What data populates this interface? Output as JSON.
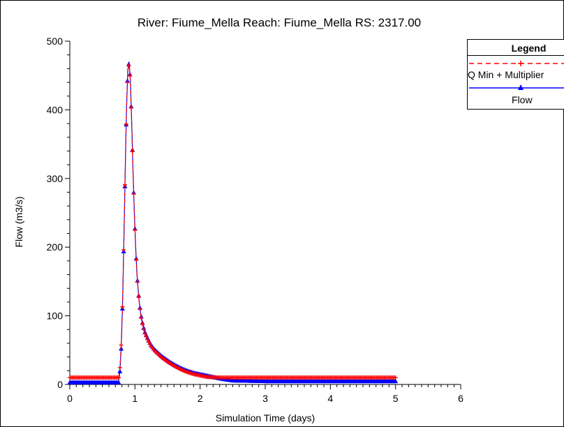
{
  "chart_data": {
    "type": "line",
    "title": "River: Fiume_Mella  Reach: Fiume_Mella  RS: 2317.00",
    "xlabel": "Simulation Time (days)",
    "ylabel": "Flow  (m3/s)",
    "xlim": [
      0,
      6
    ],
    "ylim": [
      0,
      500
    ],
    "x_ticks": [
      "0",
      "1",
      "2",
      "3",
      "4",
      "5",
      "6"
    ],
    "y_ticks": [
      "0",
      "100",
      "200",
      "300",
      "400",
      "500"
    ],
    "grid": false,
    "legend": {
      "title": "Legend",
      "placement": "top-right outside plot",
      "entries": [
        "Q Min + Multiplier",
        "Flow"
      ]
    },
    "series": [
      {
        "name": "Q Min + Multiplier",
        "color": "#ff0000",
        "line_style": "dashed",
        "marker": "plus",
        "x": [
          0,
          0.75,
          0.77,
          0.79,
          0.81,
          0.83,
          0.85,
          0.87,
          0.89,
          0.91,
          0.93,
          0.95,
          0.97,
          0.99,
          1.01,
          1.03,
          1.05,
          1.07,
          1.09,
          1.11,
          1.13,
          1.15,
          1.2,
          1.25,
          1.3,
          1.4,
          1.5,
          1.6,
          1.7,
          1.8,
          1.9,
          2.0,
          2.1,
          2.2,
          2.3,
          2.5,
          3.0,
          3.5,
          4.0,
          4.5,
          5.0
        ],
        "y": [
          10,
          10,
          25,
          60,
          120,
          210,
          310,
          400,
          455,
          468,
          440,
          380,
          310,
          250,
          200,
          160,
          135,
          115,
          100,
          90,
          82,
          75,
          64,
          55,
          49,
          40,
          33,
          27,
          22,
          18,
          15,
          13,
          11,
          10.5,
          10,
          10,
          10,
          10,
          10,
          10,
          10
        ]
      },
      {
        "name": "Flow",
        "color": "#0000ff",
        "line_style": "solid",
        "marker": "triangle",
        "x": [
          0,
          0.75,
          0.77,
          0.79,
          0.81,
          0.83,
          0.85,
          0.87,
          0.89,
          0.91,
          0.93,
          0.95,
          0.97,
          0.99,
          1.01,
          1.03,
          1.05,
          1.07,
          1.09,
          1.11,
          1.13,
          1.15,
          1.2,
          1.25,
          1.3,
          1.4,
          1.5,
          1.6,
          1.7,
          1.8,
          1.9,
          2.0,
          2.1,
          2.2,
          2.3,
          2.5,
          3.0,
          3.5,
          4.0,
          4.5,
          5.0
        ],
        "y": [
          3,
          3,
          20,
          55,
          118,
          208,
          308,
          400,
          458,
          470,
          442,
          382,
          312,
          252,
          202,
          162,
          137,
          117,
          102,
          92,
          84,
          77,
          66,
          57,
          51,
          42,
          35,
          29,
          24,
          20,
          17,
          15,
          13,
          11,
          9,
          6,
          5,
          5,
          5,
          5,
          5
        ]
      }
    ]
  }
}
